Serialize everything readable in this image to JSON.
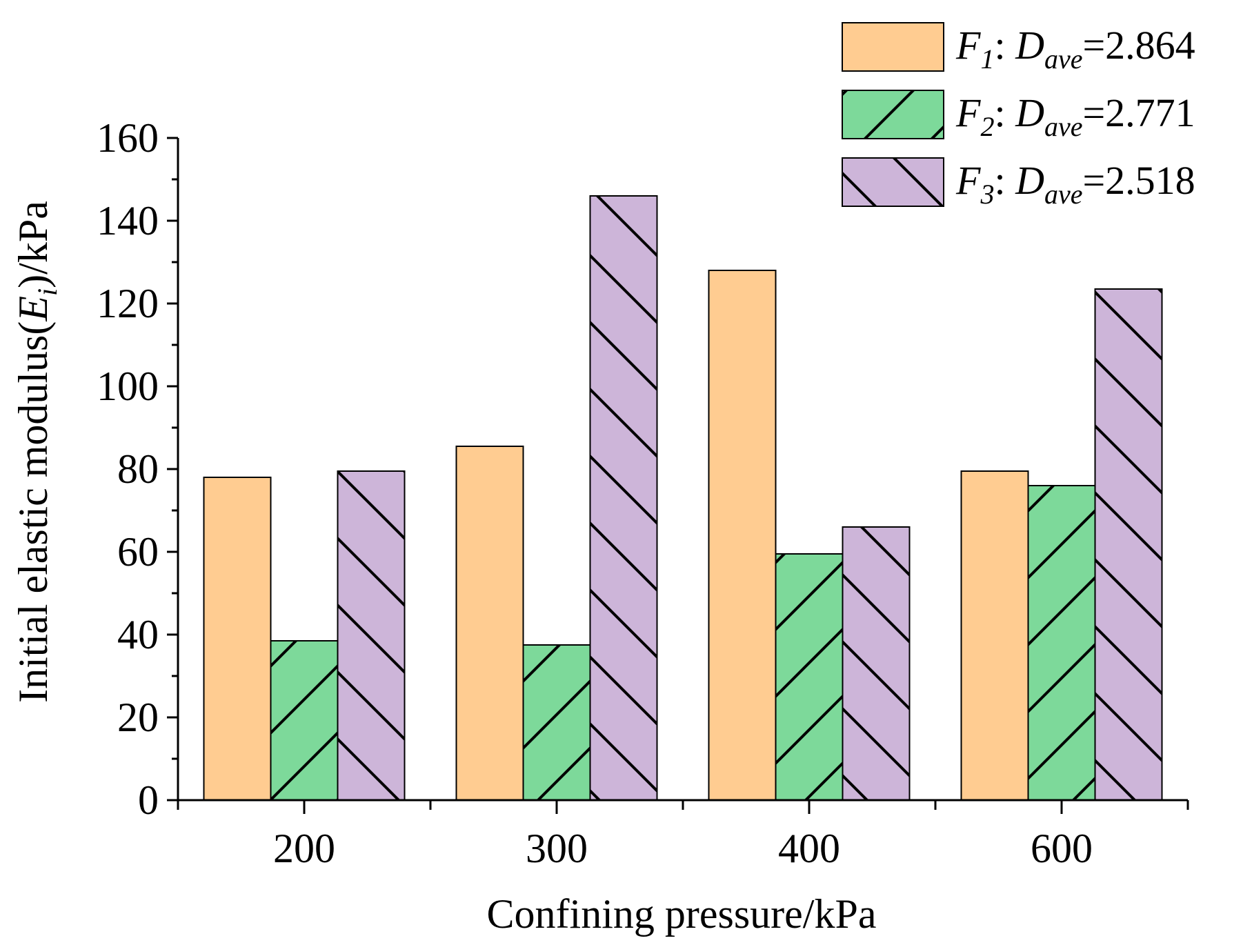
{
  "chart_data": {
    "type": "bar",
    "title": "",
    "xlabel": "Confining pressure/kPa",
    "ylabel": "Initial elastic modulus(E_i)/kPa",
    "ylabel_parts": {
      "main": "Initial elastic modulus(",
      "var": "E",
      "sub": "i",
      "tail": ")/kPa"
    },
    "categories": [
      "200",
      "300",
      "400",
      "600"
    ],
    "ylim": [
      0,
      160
    ],
    "yticks": [
      0,
      20,
      40,
      60,
      80,
      100,
      120,
      140,
      160
    ],
    "ytick_labels": [
      "0",
      "20",
      "40",
      "60",
      "80",
      "100",
      "120",
      "140",
      "160"
    ],
    "legend_position": "top-right",
    "series": [
      {
        "name": "F1: Dave=2.864",
        "label_var": "F",
        "label_sub": "1",
        "label_mid": ": ",
        "label_dvar": "D",
        "label_dsub": "ave",
        "label_val": "=2.864",
        "values": [
          78,
          85.5,
          128,
          79.5
        ],
        "color": "#FFCC91",
        "pattern": "none"
      },
      {
        "name": "F2: Dave=2.771",
        "label_var": "F",
        "label_sub": "2",
        "label_mid": ": ",
        "label_dvar": "D",
        "label_dsub": "ave",
        "label_val": "=2.771",
        "values": [
          38.5,
          37.5,
          59.5,
          76
        ],
        "color": "#7DD99A",
        "pattern": "forward"
      },
      {
        "name": "F3: Dave=2.518",
        "label_var": "F",
        "label_sub": "3",
        "label_mid": ": ",
        "label_dvar": "D",
        "label_dsub": "ave",
        "label_val": "=2.518",
        "values": [
          79.5,
          146,
          66,
          123.5
        ],
        "color": "#CDB5D9",
        "pattern": "back"
      }
    ]
  }
}
